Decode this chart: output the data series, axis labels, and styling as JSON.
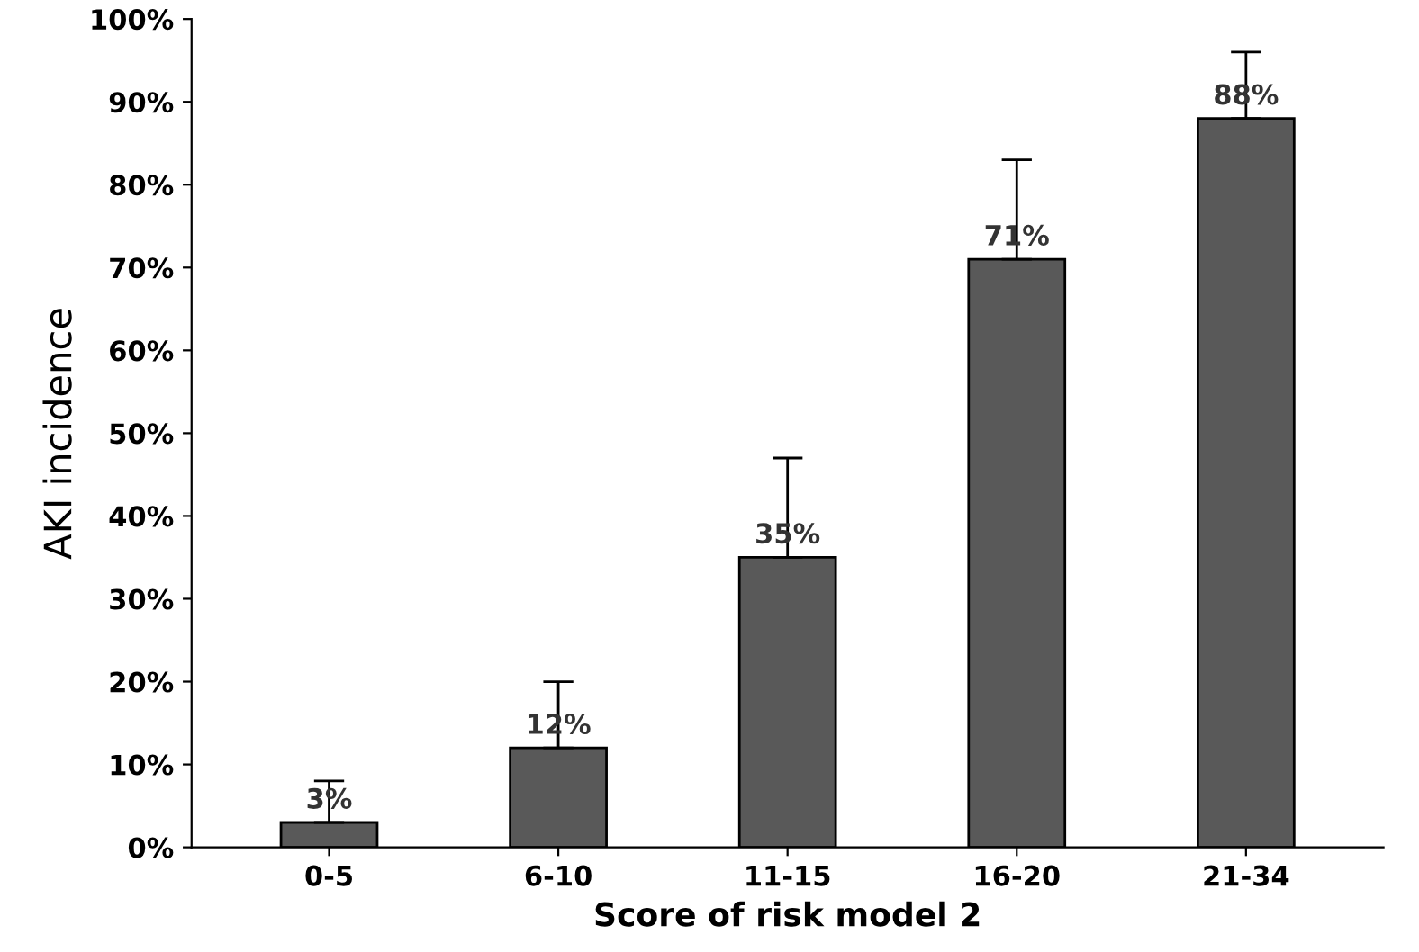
{
  "chart_data": {
    "type": "bar",
    "xlabel": "Score of risk model 2",
    "ylabel": "AKI incidence",
    "categories": [
      "0-5",
      "6-10",
      "11-15",
      "16-20",
      "21-34"
    ],
    "values": [
      3,
      12,
      35,
      71,
      88
    ],
    "value_labels": [
      "3%",
      "12%",
      "35%",
      "71%",
      "88%"
    ],
    "errors": [
      [
        3,
        8
      ],
      [
        12,
        20
      ],
      [
        35,
        47
      ],
      [
        71,
        83
      ],
      [
        88,
        96
      ]
    ],
    "color": "#595959",
    "ylim": [
      0,
      100
    ],
    "yticks": [
      {
        "value": 0,
        "label": "0%"
      },
      {
        "value": 10,
        "label": "10%"
      },
      {
        "value": 20,
        "label": "20%"
      },
      {
        "value": 30,
        "label": "30%"
      },
      {
        "value": 40,
        "label": "40%"
      },
      {
        "value": 50,
        "label": "50%"
      },
      {
        "value": 60,
        "label": "60%"
      },
      {
        "value": 70,
        "label": "70%"
      },
      {
        "value": 80,
        "label": "80%"
      },
      {
        "value": 90,
        "label": "90%"
      },
      {
        "value": 100,
        "label": "100%"
      }
    ],
    "grid": false,
    "legend": false
  }
}
